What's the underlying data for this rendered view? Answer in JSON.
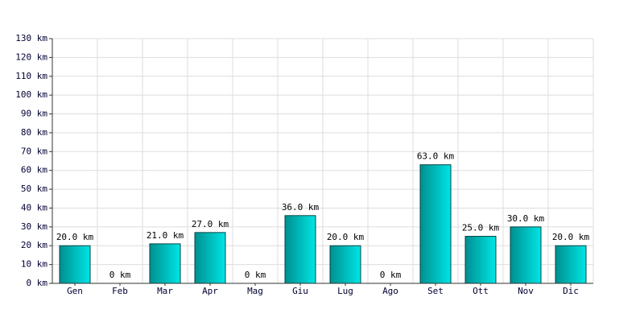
{
  "chart_data": {
    "type": "bar",
    "categories": [
      "Gen",
      "Feb",
      "Mar",
      "Apr",
      "Mag",
      "Giu",
      "Lug",
      "Ago",
      "Set",
      "Ott",
      "Nov",
      "Dic"
    ],
    "values": [
      20,
      0,
      21,
      27,
      0,
      36,
      20,
      0,
      63,
      25,
      30,
      20
    ],
    "value_labels": [
      "20.0 km",
      "0 km",
      "21.0 km",
      "27.0 km",
      "0 km",
      "36.0 km",
      "20.0 km",
      "0 km",
      "63.0 km",
      "25.0 km",
      "30.0 km",
      "20.0 km"
    ],
    "color": "#00e5e5",
    "ylim": [
      0,
      130
    ],
    "yticks": [
      {
        "value": 0,
        "label": "0 km"
      },
      {
        "value": 10,
        "label": "10 km"
      },
      {
        "value": 20,
        "label": "20 km"
      },
      {
        "value": 30,
        "label": "30 km"
      },
      {
        "value": 40,
        "label": "40 km"
      },
      {
        "value": 50,
        "label": "50 km"
      },
      {
        "value": 60,
        "label": "60 km"
      },
      {
        "value": 70,
        "label": "70 km"
      },
      {
        "value": 80,
        "label": "80 km"
      },
      {
        "value": 90,
        "label": "90 km"
      },
      {
        "value": 100,
        "label": "100 km"
      },
      {
        "value": 110,
        "label": "110 km"
      },
      {
        "value": 120,
        "label": "120 km"
      },
      {
        "value": 130,
        "label": "130 km"
      }
    ],
    "grid": true
  }
}
